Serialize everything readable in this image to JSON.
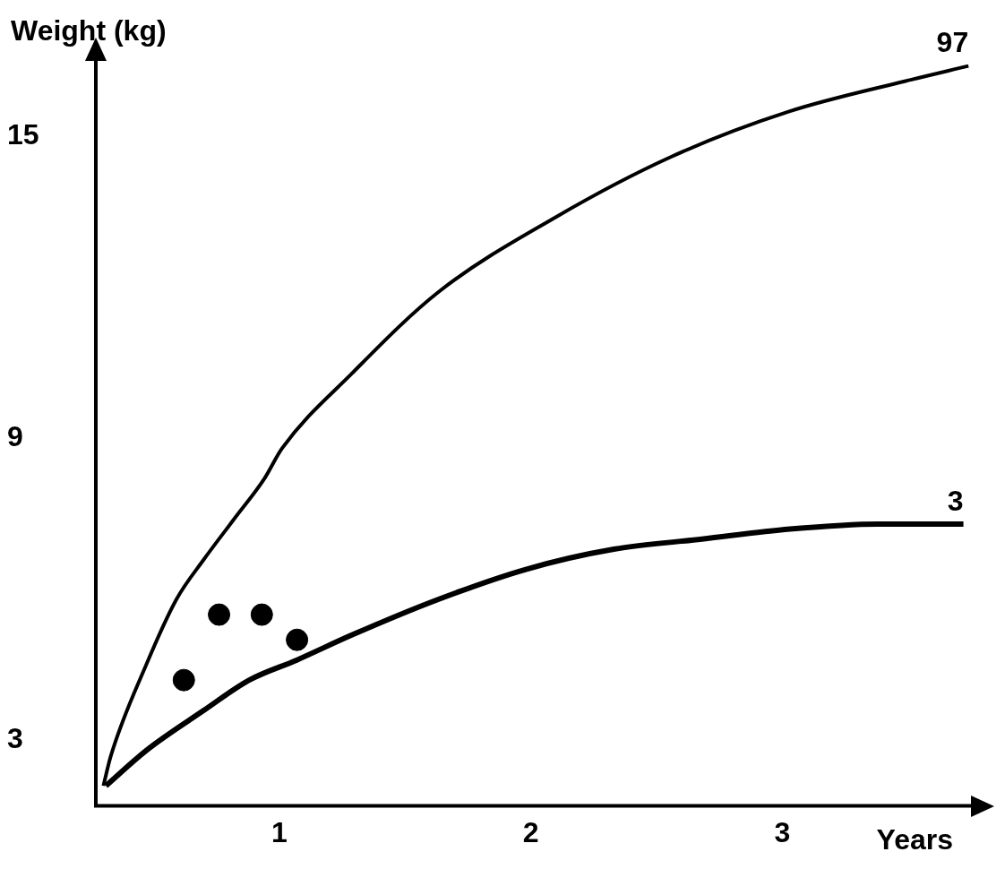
{
  "chart_data": {
    "type": "line",
    "xlabel": "Years",
    "ylabel": "Weight (kg)",
    "xlim": [
      0.27,
      3.75
    ],
    "ylim": [
      1.7,
      16.5
    ],
    "xticks": [
      1,
      2,
      3
    ],
    "yticks": [
      3,
      9,
      15
    ],
    "grid": false,
    "legend": false,
    "line_style": "solid",
    "series": [
      {
        "name": "97",
        "color": "#000000",
        "x": [
          0.3,
          0.33,
          0.47,
          0.59,
          0.7,
          0.82,
          0.94,
          1.01,
          1.29,
          1.63,
          2.1,
          2.56,
          3.03,
          3.49,
          3.74
        ],
        "values": [
          2.1,
          2.7,
          4.5,
          5.8,
          6.6,
          7.4,
          8.2,
          8.8,
          10.3,
          11.9,
          13.4,
          14.6,
          15.5,
          16.1,
          16.4
        ]
      },
      {
        "name": "3",
        "color": "#000000",
        "x": [
          0.31,
          0.47,
          0.7,
          0.88,
          1.07,
          1.29,
          1.63,
          1.98,
          2.33,
          2.68,
          3.03,
          3.38,
          3.72
        ],
        "values": [
          2.1,
          2.8,
          3.6,
          4.2,
          4.6,
          5.1,
          5.8,
          6.4,
          6.8,
          7.0,
          7.2,
          7.3,
          7.3
        ]
      },
      {
        "type": "scatter",
        "marker": "circle",
        "color": "#000000",
        "x": [
          0.62,
          0.76,
          0.93,
          1.07
        ],
        "values": [
          4.2,
          5.5,
          5.5,
          5.0
        ]
      }
    ]
  }
}
